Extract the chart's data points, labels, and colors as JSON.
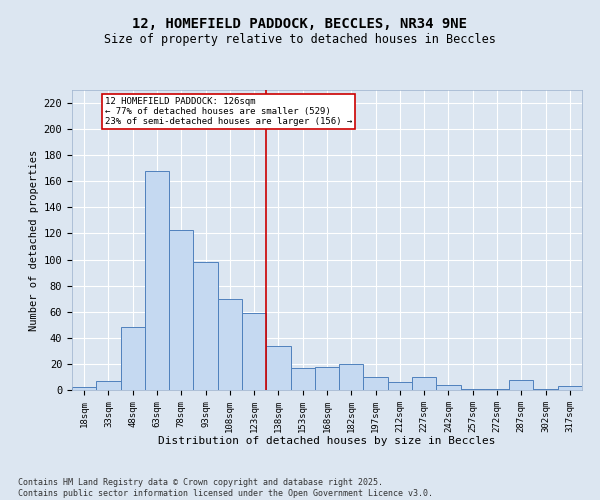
{
  "title_line1": "12, HOMEFIELD PADDOCK, BECCLES, NR34 9NE",
  "title_line2": "Size of property relative to detached houses in Beccles",
  "xlabel": "Distribution of detached houses by size in Beccles",
  "ylabel": "Number of detached properties",
  "footer": "Contains HM Land Registry data © Crown copyright and database right 2025.\nContains public sector information licensed under the Open Government Licence v3.0.",
  "bin_labels": [
    "18sqm",
    "33sqm",
    "48sqm",
    "63sqm",
    "78sqm",
    "93sqm",
    "108sqm",
    "123sqm",
    "138sqm",
    "153sqm",
    "168sqm",
    "182sqm",
    "197sqm",
    "212sqm",
    "227sqm",
    "242sqm",
    "257sqm",
    "272sqm",
    "287sqm",
    "302sqm",
    "317sqm"
  ],
  "bar_heights": [
    2,
    7,
    48,
    168,
    123,
    98,
    70,
    59,
    34,
    17,
    18,
    20,
    10,
    6,
    10,
    4,
    1,
    1,
    8,
    1,
    3
  ],
  "bar_color": "#c5d9f1",
  "bar_edgecolor": "#4f81bd",
  "background_color": "#dce6f1",
  "grid_color": "#ffffff",
  "vline_x": 7.5,
  "vline_color": "#cc0000",
  "annotation_text": "12 HOMEFIELD PADDOCK: 126sqm\n← 77% of detached houses are smaller (529)\n23% of semi-detached houses are larger (156) →",
  "annotation_box_color": "#cc0000",
  "ylim": [
    0,
    230
  ],
  "yticks": [
    0,
    20,
    40,
    60,
    80,
    100,
    120,
    140,
    160,
    180,
    200,
    220
  ]
}
